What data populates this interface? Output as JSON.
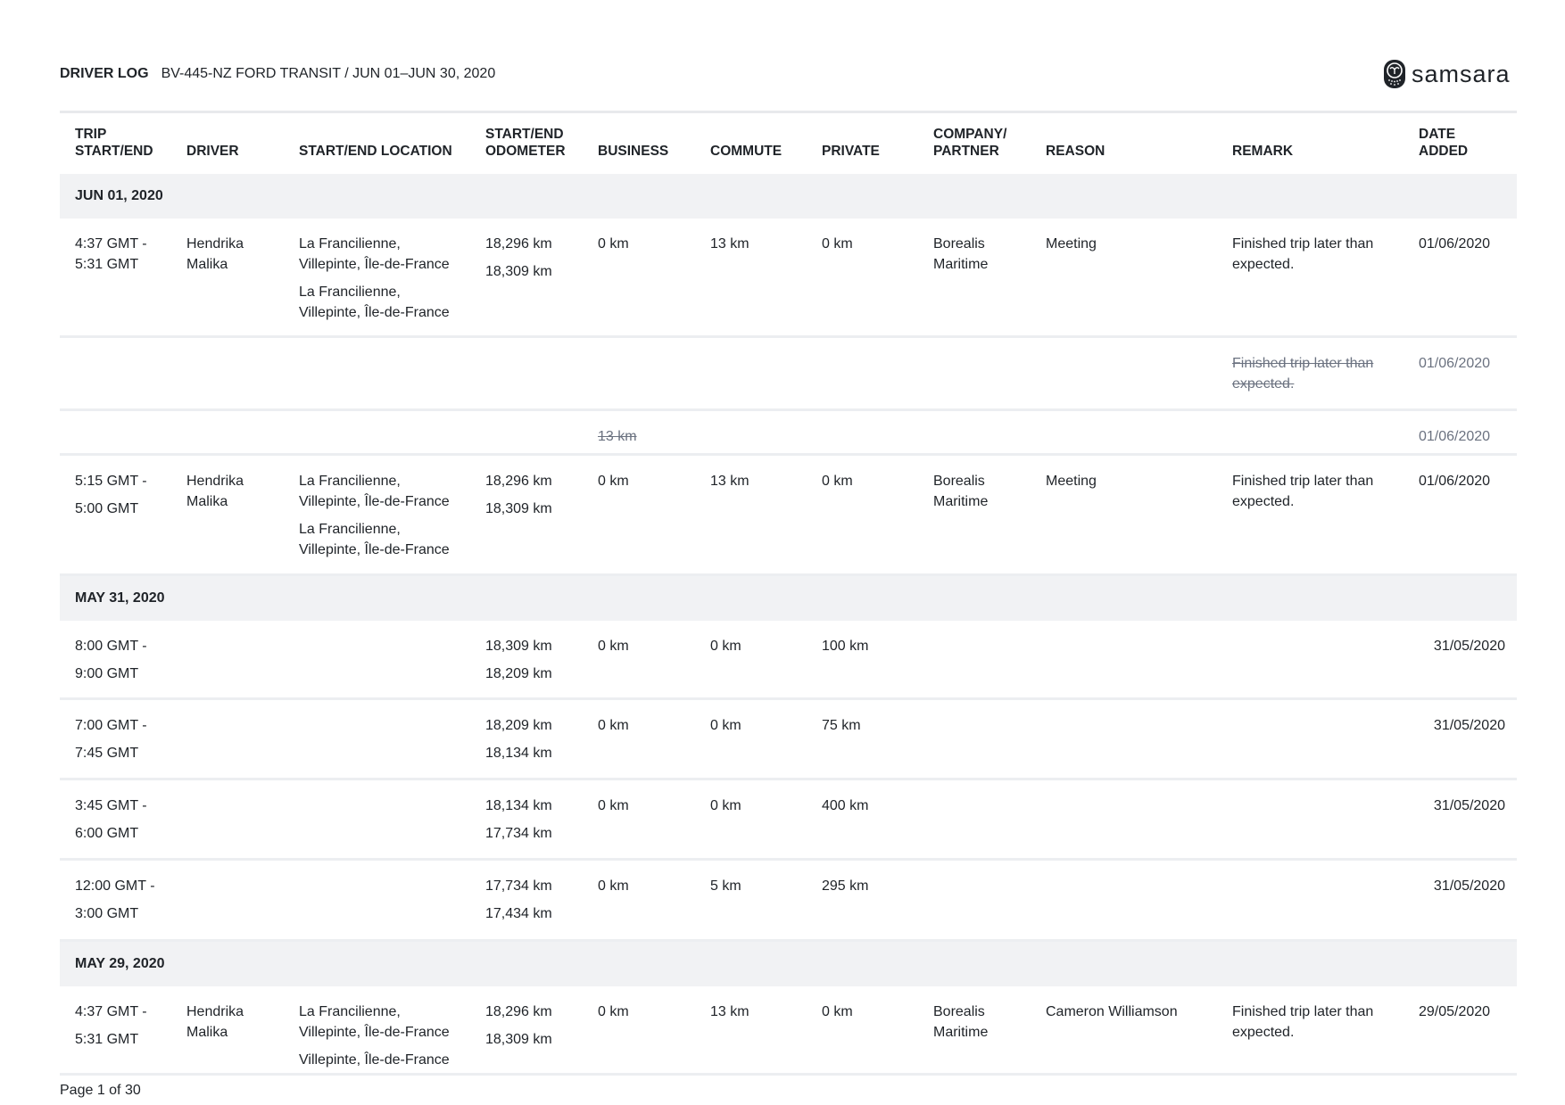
{
  "header": {
    "title": "DRIVER LOG",
    "subtitle": "BV-445-NZ FORD TRANSIT / JUN 01–JUN 30, 2020"
  },
  "logo": {
    "text": "samsara",
    "icon": "owl-logo-icon"
  },
  "columns": [
    "TRIP\nSTART/END",
    "DRIVER",
    "START/END LOCATION",
    "START/END\nODOMETER",
    "BUSINESS",
    "COMMUTE",
    "PRIVATE",
    "COMPANY/\nPARTNER",
    "REASON",
    "REMARK",
    "DATE\nADDED"
  ],
  "rows": [
    {
      "type": "group",
      "label": "JUN 01, 2020"
    },
    {
      "type": "trip",
      "time": [
        "4:37 GMT -\n5:31 GMT"
      ],
      "driver": "Hendrika\nMalika",
      "locations": [
        "La Francilienne,\nVillepinte, Île-de-France",
        "La Francilienne,\nVillepinte, Île-de-France"
      ],
      "odometer": [
        "18,296 km",
        "18,309 km"
      ],
      "business": "0 km",
      "commute": "13 km",
      "private": "0 km",
      "company": "Borealis\nMaritime",
      "reason": "Meeting",
      "remark": "Finished trip later than\nexpected.",
      "date": "01/06/2020"
    },
    {
      "type": "edit",
      "remark_struck": "Finished trip later than\nexpected.",
      "date": "01/06/2020"
    },
    {
      "type": "edit",
      "business_struck": "13 km",
      "date": "01/06/2020"
    },
    {
      "type": "trip",
      "time": [
        "5:15 GMT -",
        "5:00 GMT"
      ],
      "driver": "Hendrika\nMalika",
      "locations": [
        "La Francilienne,\nVillepinte, Île-de-France",
        "La Francilienne,\nVillepinte, Île-de-France"
      ],
      "odometer": [
        "18,296 km",
        "18,309 km"
      ],
      "business": "0 km",
      "commute": "13 km",
      "private": "0 km",
      "company": "Borealis\nMaritime",
      "reason": "Meeting",
      "remark": "Finished trip later than\nexpected.",
      "date": "01/06/2020"
    },
    {
      "type": "group",
      "label": "MAY 31, 2020"
    },
    {
      "type": "trip",
      "time": [
        "8:00 GMT -",
        "9:00 GMT"
      ],
      "odometer": [
        "18,309 km",
        "18,209 km"
      ],
      "business": "0 km",
      "commute": "0 km",
      "private": "100 km",
      "date": "31/05/2020"
    },
    {
      "type": "trip",
      "time": [
        "7:00 GMT -",
        "7:45 GMT"
      ],
      "odometer": [
        "18,209 km",
        "18,134 km"
      ],
      "business": "0 km",
      "commute": "0 km",
      "private": "75 km",
      "date": "31/05/2020"
    },
    {
      "type": "trip",
      "time": [
        "3:45 GMT -",
        "6:00 GMT"
      ],
      "odometer": [
        "18,134 km",
        "17,734 km"
      ],
      "business": "0 km",
      "commute": "0 km",
      "private": "400 km",
      "date": "31/05/2020"
    },
    {
      "type": "trip",
      "time": [
        "12:00 GMT -",
        "3:00 GMT"
      ],
      "odometer": [
        "17,734 km",
        "17,434 km"
      ],
      "business": "0 km",
      "commute": "5 km",
      "private": "295 km",
      "date": "31/05/2020"
    },
    {
      "type": "group",
      "label": "MAY 29, 2020"
    },
    {
      "type": "trip",
      "time": [
        "4:37 GMT -",
        "5:31 GMT"
      ],
      "driver": "Hendrika\nMalika",
      "locations": [
        "La Francilienne,\nVillepinte, Île-de-France",
        "Villepinte, Île-de-France"
      ],
      "odometer": [
        "18,296 km",
        "18,309 km"
      ],
      "business": "0 km",
      "commute": "13 km",
      "private": "0 km",
      "company": "Borealis\nMaritime",
      "reason": "Cameron Williamson",
      "remark": "Finished trip later than\nexpected.",
      "date": "29/05/2020"
    }
  ],
  "footer": {
    "page": "Page 1 of 30"
  }
}
